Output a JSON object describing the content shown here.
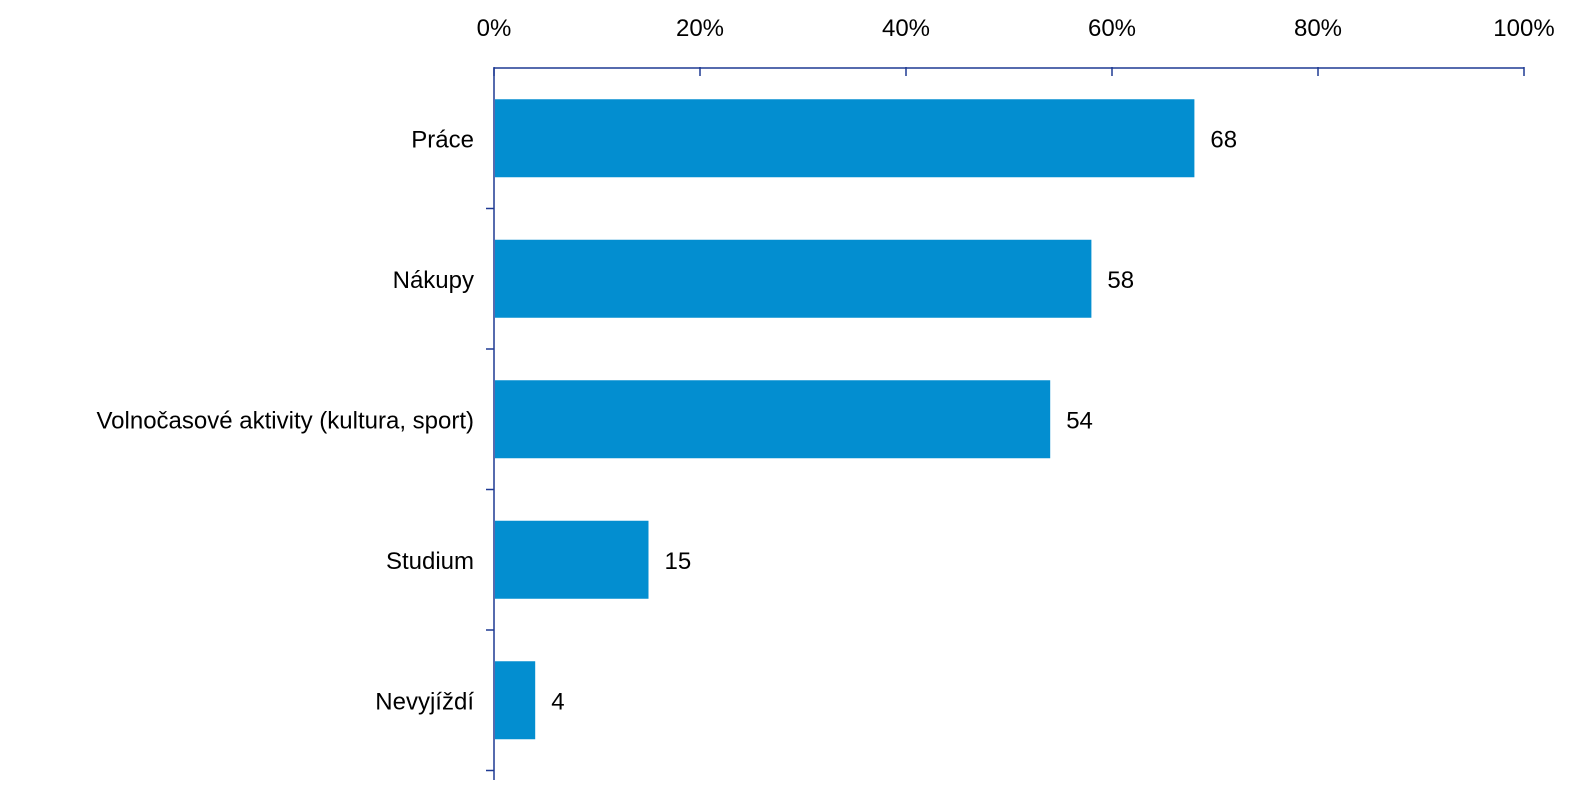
{
  "chart_data": {
    "type": "bar",
    "orientation": "horizontal",
    "title": "",
    "xlabel": "",
    "ylabel": "",
    "categories": [
      "Práce",
      "Nákupy",
      "Volnočasové aktivity (kultura, sport)",
      "Studium",
      "Nevyjíždí"
    ],
    "values": [
      68,
      58,
      54,
      15,
      4
    ],
    "data_labels": [
      "68",
      "58",
      "54",
      "15",
      "4"
    ],
    "xlim": [
      0,
      100
    ],
    "x_ticks": [
      0,
      20,
      40,
      60,
      80,
      100
    ],
    "x_tick_labels": [
      "0%",
      "20%",
      "40%",
      "60%",
      "80%",
      "100%"
    ],
    "x_axis_position": "top",
    "grid": false,
    "legend": "none",
    "colors": {
      "bar": "#038ED0",
      "axis": "#1F3A93"
    }
  }
}
